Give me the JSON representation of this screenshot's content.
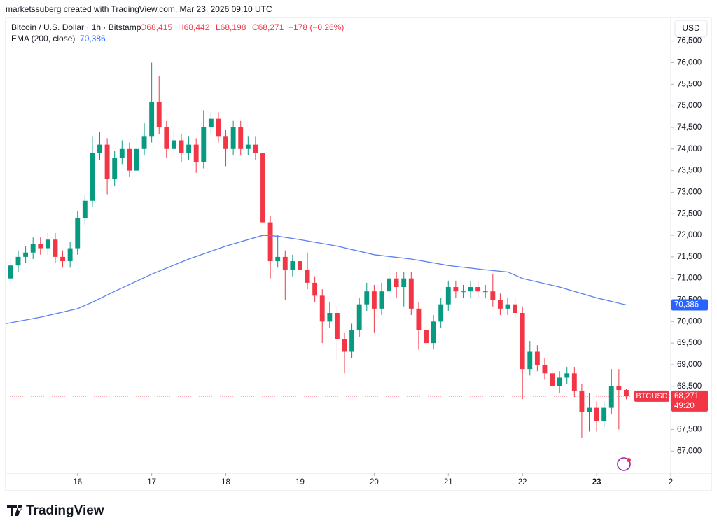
{
  "header": {
    "credit": "marketssuberg created with TradingView.com, Mar 23, 2026 09:10 UTC",
    "symbol": "Bitcoin / U.S. Dollar · 1h · Bitstamp",
    "open": "O68,415",
    "high": "H68,442",
    "low": "L68,198",
    "close": "C68,271",
    "change": "−178 (−0.26%)",
    "indicator": "EMA (200, close)",
    "indicator_value": "70,386",
    "currency_button": "USD"
  },
  "footer": {
    "logo": "TradingView"
  },
  "chart_data": {
    "type": "candlestick",
    "colors": {
      "up": "#089981",
      "down": "#f23645"
    },
    "x": [
      15.1,
      15.2,
      15.3,
      15.4,
      15.5,
      15.6,
      15.7,
      15.8,
      15.9,
      16.0,
      16.1,
      16.2,
      16.3,
      16.4,
      16.5,
      16.6,
      16.7,
      16.8,
      16.9,
      17.0,
      17.1,
      17.2,
      17.3,
      17.4,
      17.5,
      17.6,
      17.7,
      17.8,
      17.9,
      18.0,
      18.1,
      18.2,
      18.3,
      18.4,
      18.5,
      18.6,
      18.7,
      18.8,
      18.9,
      19.0,
      19.1,
      19.2,
      19.3,
      19.4,
      19.5,
      19.6,
      19.7,
      19.8,
      19.9,
      20.0,
      20.1,
      20.2,
      20.3,
      20.4,
      20.5,
      20.6,
      20.7,
      20.8,
      20.9,
      21.0,
      21.1,
      21.2,
      21.3,
      21.4,
      21.5,
      21.6,
      21.7,
      21.8,
      21.9,
      22.0,
      22.1,
      22.2,
      22.3,
      22.4,
      22.5,
      22.6,
      22.7,
      22.8,
      22.9,
      23.0,
      23.1,
      23.2,
      23.3,
      23.4
    ],
    "open": [
      71000,
      71300,
      71500,
      71600,
      71800,
      71700,
      71900,
      71500,
      71400,
      71700,
      72400,
      72800,
      73900,
      74100,
      73300,
      73800,
      74000,
      73500,
      74000,
      74300,
      75100,
      74500,
      74000,
      74200,
      73900,
      74100,
      73700,
      74500,
      74700,
      74300,
      74000,
      74500,
      74000,
      74100,
      73900,
      72300,
      71400,
      71500,
      71200,
      71400,
      71200,
      70900,
      70600,
      70000,
      70200,
      69600,
      69300,
      69800,
      70400,
      70700,
      70300,
      70700,
      71000,
      70800,
      71000,
      70300,
      69800,
      69500,
      70000,
      70400,
      70800,
      70700,
      70700,
      70800,
      70700,
      70700,
      70500,
      70300,
      70400,
      70200,
      68900,
      69300,
      69000,
      68800,
      68500,
      68700,
      68800,
      68400,
      67900,
      68000,
      67700,
      68000,
      68500,
      68415
    ],
    "high": [
      71450,
      71650,
      71750,
      71950,
      71950,
      72050,
      72050,
      71650,
      71850,
      72550,
      72950,
      74300,
      74400,
      74250,
      73950,
      74200,
      74150,
      74300,
      74600,
      76000,
      75700,
      74650,
      74450,
      74350,
      74300,
      74250,
      74900,
      74850,
      74850,
      74450,
      74650,
      74650,
      74300,
      74300,
      74050,
      72450,
      72000,
      71650,
      71550,
      71550,
      71600,
      71050,
      70750,
      70450,
      70350,
      69750,
      69950,
      70550,
      70900,
      70850,
      70900,
      71350,
      71150,
      71150,
      71150,
      70450,
      69950,
      70150,
      70550,
      70950,
      70950,
      70850,
      70950,
      70950,
      70850,
      71100,
      70650,
      70550,
      70550,
      70350,
      69550,
      69450,
      69150,
      68950,
      68850,
      68950,
      68950,
      68550,
      68350,
      68150,
      68150,
      68900,
      68900,
      68442
    ],
    "low": [
      70850,
      71150,
      71350,
      71450,
      71550,
      71550,
      71350,
      71250,
      71250,
      71550,
      72250,
      72650,
      73750,
      72950,
      73150,
      73650,
      73350,
      73350,
      73850,
      74150,
      74350,
      73800,
      73850,
      73700,
      73750,
      73450,
      73550,
      74350,
      74150,
      73600,
      73850,
      73850,
      73850,
      73750,
      72150,
      71000,
      71250,
      70500,
      71050,
      71050,
      70750,
      70450,
      69500,
      69850,
      69100,
      68800,
      69150,
      69650,
      70250,
      69750,
      70150,
      70550,
      70550,
      70350,
      70150,
      69350,
      69350,
      69350,
      69850,
      70250,
      70550,
      70550,
      70550,
      70550,
      70550,
      70350,
      70150,
      70150,
      70050,
      68200,
      68750,
      68850,
      68650,
      68350,
      68350,
      68550,
      68250,
      67300,
      67450,
      67450,
      67550,
      67850,
      67500,
      68198
    ],
    "close": [
      71300,
      71500,
      71600,
      71800,
      71700,
      71900,
      71500,
      71400,
      71700,
      72400,
      72800,
      73900,
      74100,
      73300,
      73800,
      74000,
      73500,
      74000,
      74300,
      75100,
      74500,
      74000,
      74200,
      73900,
      74100,
      73700,
      74500,
      74700,
      74300,
      74000,
      74500,
      74000,
      74100,
      73900,
      72300,
      71400,
      71500,
      71200,
      71400,
      71200,
      70900,
      70600,
      70000,
      70200,
      69600,
      69300,
      69800,
      70400,
      70700,
      70300,
      70700,
      71000,
      70800,
      71000,
      70300,
      69800,
      69500,
      70000,
      70400,
      70800,
      70700,
      70700,
      70800,
      70700,
      70700,
      70500,
      70300,
      70400,
      70200,
      68900,
      69300,
      69000,
      68800,
      68500,
      68700,
      68800,
      68400,
      67900,
      68000,
      67700,
      68000,
      68500,
      68415,
      68271
    ],
    "ema": {
      "name": "EMA (200, close)",
      "color": "#5b7ff0",
      "x": [
        15.03,
        15.5,
        16.0,
        16.2,
        16.5,
        17.0,
        17.5,
        18.0,
        18.5,
        18.7,
        19.0,
        19.5,
        20.0,
        20.5,
        21.0,
        21.5,
        21.8,
        22.0,
        22.5,
        23.0,
        23.4
      ],
      "values": [
        69950,
        70100,
        70300,
        70450,
        70700,
        71100,
        71450,
        71750,
        72000,
        71980,
        71900,
        71750,
        71550,
        71450,
        71300,
        71200,
        71150,
        71000,
        70800,
        70550,
        70386
      ]
    },
    "last_price": {
      "value": 68271,
      "label": "68,271",
      "symbol": "BTCUSD",
      "countdown": "49:20"
    },
    "ema_last": {
      "value": 70386,
      "label": "70,386"
    },
    "xlim": [
      15.03,
      24.0
    ],
    "xticks": [
      16,
      17,
      18,
      19,
      20,
      21,
      22,
      23,
      {
        "value": 24,
        "label": "2"
      }
    ],
    "ylim": [
      66420,
      76560
    ],
    "yticks": [
      {
        "value": 67000,
        "label": "67,000"
      },
      {
        "value": 67500,
        "label": "67,500"
      },
      {
        "value": 68000,
        "label": "68,000"
      },
      {
        "value": 68500,
        "label": "68,500"
      },
      {
        "value": 69000,
        "label": "69,000"
      },
      {
        "value": 69500,
        "label": "69,500"
      },
      {
        "value": 70000,
        "label": "70,000"
      },
      {
        "value": 70500,
        "label": "70,500"
      },
      {
        "value": 71000,
        "label": "71,000"
      },
      {
        "value": 71500,
        "label": "71,500"
      },
      {
        "value": 72000,
        "label": "72,000"
      },
      {
        "value": 72500,
        "label": "72,500"
      },
      {
        "value": 73000,
        "label": "73,000"
      },
      {
        "value": 73500,
        "label": "73,500"
      },
      {
        "value": 74000,
        "label": "74,000"
      },
      {
        "value": 74500,
        "label": "74,500"
      },
      {
        "value": 75000,
        "label": "75,000"
      },
      {
        "value": 75500,
        "label": "75,500"
      },
      {
        "value": 76000,
        "label": "76,000"
      },
      {
        "value": 76500,
        "label": "76,500"
      }
    ],
    "grid": false
  }
}
